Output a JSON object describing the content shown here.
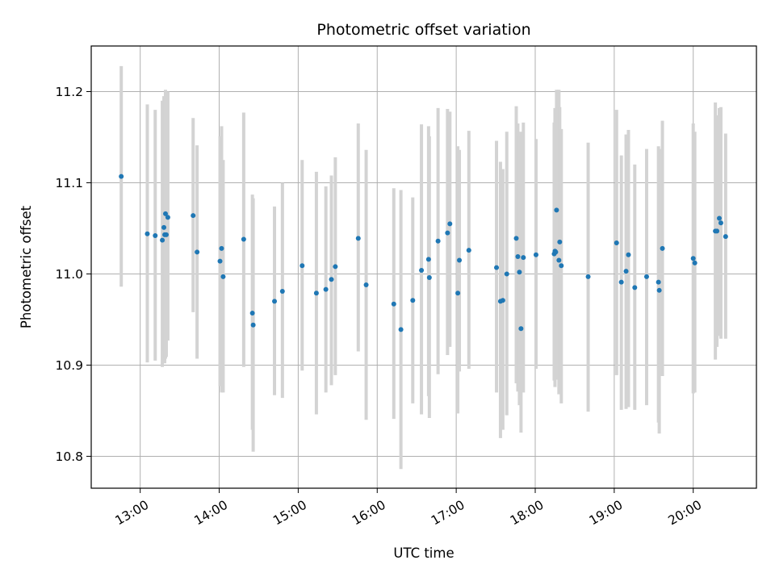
{
  "chart_data": {
    "type": "scatter",
    "title": "Photometric offset variation",
    "xlabel": "UTC time",
    "ylabel": "Photometric offset",
    "x_unit": "hours (UTC)",
    "xlim": [
      12.38,
      20.8
    ],
    "ylim": [
      10.765,
      11.25
    ],
    "x_ticks": [
      13,
      14,
      15,
      16,
      17,
      18,
      19,
      20
    ],
    "x_tick_labels": [
      "13:00",
      "14:00",
      "15:00",
      "16:00",
      "17:00",
      "18:00",
      "19:00",
      "20:00"
    ],
    "y_ticks": [
      10.8,
      10.9,
      11.0,
      11.1,
      11.2
    ],
    "y_tick_labels": [
      "10.8",
      "10.9",
      "11.0",
      "11.1",
      "11.2"
    ],
    "grid": true,
    "legend": "none",
    "colors": {
      "points": "#1f77b4",
      "errorbars": "#d3d3d3",
      "grid": "#b0b0b0"
    },
    "series": [
      {
        "x": [
          12.76,
          13.09,
          13.19,
          13.28,
          13.3,
          13.31,
          13.32,
          13.33,
          13.35,
          13.67,
          13.72,
          14.01,
          14.03,
          14.05,
          14.31,
          14.42,
          14.43,
          14.7,
          14.8,
          15.05,
          15.23,
          15.35,
          15.42,
          15.47,
          15.76,
          15.86,
          16.21,
          16.3,
          16.45,
          16.56,
          16.65,
          16.66,
          16.77,
          16.89,
          16.92,
          17.02,
          17.04,
          17.16,
          17.51,
          17.56,
          17.59,
          17.64,
          17.76,
          17.78,
          17.8,
          17.82,
          17.85,
          18.01,
          18.24,
          18.25,
          18.26,
          18.27,
          18.3,
          18.31,
          18.33,
          18.67,
          19.03,
          19.09,
          19.15,
          19.18,
          19.26,
          19.41,
          19.56,
          19.57,
          19.61,
          20.0,
          20.02,
          20.28,
          20.3,
          20.33,
          20.35,
          20.41
        ],
        "y": [
          11.107,
          11.044,
          11.042,
          11.037,
          11.051,
          11.043,
          11.066,
          11.043,
          11.062,
          11.064,
          11.024,
          11.014,
          11.028,
          10.997,
          11.038,
          10.957,
          10.944,
          10.97,
          10.981,
          11.009,
          10.979,
          10.983,
          10.994,
          11.008,
          11.039,
          10.988,
          10.967,
          10.939,
          10.971,
          11.004,
          11.016,
          10.996,
          11.036,
          11.045,
          11.055,
          10.979,
          11.015,
          11.026,
          11.007,
          10.97,
          10.971,
          11.0,
          11.039,
          11.019,
          11.002,
          10.94,
          11.018,
          11.021,
          11.022,
          11.025,
          11.024,
          11.07,
          11.015,
          11.035,
          11.009,
          10.997,
          11.034,
          10.991,
          11.003,
          11.021,
          10.985,
          10.997,
          10.991,
          10.982,
          11.028,
          11.017,
          11.012,
          11.047,
          11.047,
          11.061,
          11.056,
          11.041
        ],
        "yerr_low": [
          10.986,
          10.903,
          10.905,
          10.898,
          10.915,
          10.902,
          10.907,
          10.909,
          10.927,
          10.958,
          10.907,
          10.877,
          10.87,
          10.87,
          10.898,
          10.829,
          10.805,
          10.867,
          10.864,
          10.894,
          10.846,
          10.87,
          10.878,
          10.889,
          10.915,
          10.84,
          10.841,
          10.786,
          10.858,
          10.846,
          10.866,
          10.842,
          10.89,
          10.911,
          10.92,
          10.847,
          10.893,
          10.896,
          10.87,
          10.82,
          10.829,
          10.845,
          10.88,
          10.871,
          10.856,
          10.826,
          10.87,
          10.896,
          10.883,
          10.876,
          10.884,
          10.884,
          10.868,
          10.877,
          10.858,
          10.849,
          10.889,
          10.851,
          10.852,
          10.854,
          10.851,
          10.856,
          10.837,
          10.825,
          10.888,
          10.869,
          10.87,
          10.906,
          10.92,
          10.932,
          10.929,
          10.929
        ],
        "yerr_high": [
          11.228,
          11.186,
          11.18,
          11.19,
          11.195,
          11.179,
          11.202,
          11.179,
          11.2,
          11.171,
          11.141,
          11.151,
          11.162,
          11.125,
          11.177,
          11.087,
          11.083,
          11.074,
          11.1,
          11.125,
          11.112,
          11.096,
          11.108,
          11.128,
          11.165,
          11.136,
          11.094,
          11.092,
          11.084,
          11.164,
          11.162,
          11.151,
          11.182,
          11.181,
          11.178,
          11.14,
          11.136,
          11.157,
          11.146,
          11.123,
          11.115,
          11.156,
          11.184,
          11.165,
          11.152,
          11.156,
          11.166,
          11.148,
          11.166,
          11.182,
          11.173,
          11.202,
          11.202,
          11.183,
          11.159,
          11.144,
          11.18,
          11.13,
          11.153,
          11.158,
          11.12,
          11.137,
          11.14,
          11.137,
          11.168,
          11.165,
          11.156,
          11.188,
          11.174,
          11.182,
          11.183,
          11.154
        ]
      }
    ]
  }
}
